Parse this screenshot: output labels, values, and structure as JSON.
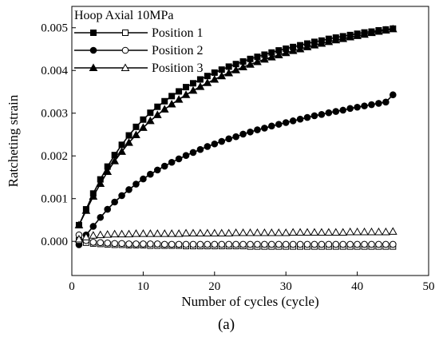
{
  "chart_data": {
    "type": "line",
    "panel_label": "(a)",
    "xlabel": "Number of cycles (cycle)",
    "ylabel": "Ratcheting strain",
    "xlim": [
      0,
      50
    ],
    "ylim": [
      -0.0008,
      0.0055
    ],
    "xticks": [
      0,
      10,
      20,
      30,
      40,
      50
    ],
    "xtick_labels": [
      "0",
      "10",
      "20",
      "30",
      "40",
      "50"
    ],
    "yticks": [
      0.0,
      0.001,
      0.002,
      0.003,
      0.004,
      0.005
    ],
    "ytick_labels": [
      "0.000",
      "0.001",
      "0.002",
      "0.003",
      "0.004",
      "0.005"
    ],
    "legend": {
      "title": "Hoop Axial 10MPa",
      "placement": "top-left"
    },
    "series_shape": {
      "hoop_1": "square",
      "hoop_2": "circle",
      "hoop_3": "triangle",
      "axial_1": "square",
      "axial_2": "circle",
      "axial_3": "triangle"
    },
    "series_fill": {
      "hoop_1": "filled",
      "hoop_2": "filled",
      "hoop_3": "filled",
      "axial_1": "open",
      "axial_2": "open",
      "axial_3": "open"
    },
    "x": [
      1,
      2,
      3,
      4,
      5,
      6,
      7,
      8,
      9,
      10,
      11,
      12,
      13,
      14,
      15,
      16,
      17,
      18,
      19,
      20,
      21,
      22,
      23,
      24,
      25,
      26,
      27,
      28,
      29,
      30,
      31,
      32,
      33,
      34,
      35,
      36,
      37,
      38,
      39,
      40,
      41,
      42,
      43,
      44,
      45
    ],
    "series": [
      {
        "name": "Position 1",
        "key": "hoop_1",
        "values": [
          0.00038,
          0.00075,
          0.00112,
          0.00145,
          0.00175,
          0.00202,
          0.00226,
          0.00248,
          0.00268,
          0.00285,
          0.00301,
          0.00315,
          0.00328,
          0.0034,
          0.00351,
          0.00361,
          0.0037,
          0.00379,
          0.00387,
          0.00395,
          0.00402,
          0.00409,
          0.00415,
          0.00421,
          0.00427,
          0.00432,
          0.00437,
          0.00442,
          0.00447,
          0.00451,
          0.00455,
          0.00459,
          0.00463,
          0.00467,
          0.0047,
          0.00474,
          0.00477,
          0.0048,
          0.00483,
          0.00486,
          0.00489,
          0.00491,
          0.00494,
          0.00496,
          0.00498
        ]
      },
      {
        "name": "Position 2",
        "key": "hoop_2",
        "values": [
          -8e-05,
          0.00015,
          0.00035,
          0.00056,
          0.00075,
          0.00092,
          0.00107,
          0.00121,
          0.00134,
          0.00146,
          0.00157,
          0.00167,
          0.00176,
          0.00185,
          0.00193,
          0.00201,
          0.00208,
          0.00215,
          0.00222,
          0.00228,
          0.00234,
          0.0024,
          0.00245,
          0.00251,
          0.00256,
          0.00261,
          0.00265,
          0.0027,
          0.00274,
          0.00278,
          0.00282,
          0.00286,
          0.0029,
          0.00294,
          0.00297,
          0.00301,
          0.00304,
          0.00307,
          0.00311,
          0.00314,
          0.00317,
          0.0032,
          0.00323,
          0.00326,
          0.00343
        ]
      },
      {
        "name": "Position 3",
        "key": "hoop_3",
        "values": [
          0.00038,
          0.00072,
          0.00105,
          0.00135,
          0.00163,
          0.00188,
          0.0021,
          0.00231,
          0.00249,
          0.00266,
          0.00282,
          0.00296,
          0.00309,
          0.00321,
          0.00332,
          0.00343,
          0.00353,
          0.00362,
          0.00371,
          0.00379,
          0.00387,
          0.00394,
          0.00401,
          0.00408,
          0.00414,
          0.0042,
          0.00426,
          0.00431,
          0.00436,
          0.00441,
          0.00446,
          0.0045,
          0.00455,
          0.00459,
          0.00463,
          0.00467,
          0.00471,
          0.00474,
          0.00478,
          0.00481,
          0.00484,
          0.00488,
          0.00491,
          0.00494,
          0.00497
        ]
      },
      {
        "key": "axial_1",
        "values": [
          2e-05,
          -3e-05,
          -5e-05,
          -6e-05,
          -7e-05,
          -8e-05,
          -8e-05,
          -9e-05,
          -9e-05,
          -9e-05,
          -0.0001,
          -0.0001,
          -0.0001,
          -0.0001,
          -0.0001,
          -0.00011,
          -0.00011,
          -0.00011,
          -0.00011,
          -0.00011,
          -0.00011,
          -0.00011,
          -0.00011,
          -0.00011,
          -0.00012,
          -0.00012,
          -0.00012,
          -0.00012,
          -0.00012,
          -0.00012,
          -0.00012,
          -0.00012,
          -0.00012,
          -0.00012,
          -0.00012,
          -0.00012,
          -0.00012,
          -0.00012,
          -0.00012,
          -0.00012,
          -0.00012,
          -0.00012,
          -0.00012,
          -0.00012,
          -0.00012
        ]
      },
      {
        "key": "axial_2",
        "values": [
          0.00015,
          2e-05,
          -2e-05,
          -3e-05,
          -4e-05,
          -5e-05,
          -5e-05,
          -6e-05,
          -6e-05,
          -6e-05,
          -6e-05,
          -6e-05,
          -7e-05,
          -7e-05,
          -7e-05,
          -7e-05,
          -7e-05,
          -7e-05,
          -7e-05,
          -7e-05,
          -7e-05,
          -7e-05,
          -7e-05,
          -7e-05,
          -7e-05,
          -7e-05,
          -7e-05,
          -7e-05,
          -7e-05,
          -7e-05,
          -7e-05,
          -7e-05,
          -7e-05,
          -7e-05,
          -7e-05,
          -7e-05,
          -7e-05,
          -7e-05,
          -7e-05,
          -7e-05,
          -7e-05,
          -7e-05,
          -7e-05,
          -7e-05,
          -7e-05
        ]
      },
      {
        "key": "axial_3",
        "values": [
          5e-05,
          0.0001,
          0.00014,
          0.00015,
          0.00016,
          0.00017,
          0.00017,
          0.00017,
          0.00018,
          0.00018,
          0.00018,
          0.00018,
          0.00018,
          0.00018,
          0.00018,
          0.00019,
          0.00019,
          0.00019,
          0.00019,
          0.00019,
          0.00019,
          0.00019,
          0.0002,
          0.0002,
          0.0002,
          0.0002,
          0.0002,
          0.0002,
          0.0002,
          0.0002,
          0.00021,
          0.00021,
          0.00021,
          0.00021,
          0.00021,
          0.00021,
          0.00021,
          0.00021,
          0.00022,
          0.00022,
          0.00022,
          0.00022,
          0.00022,
          0.00022,
          0.00023
        ]
      }
    ]
  }
}
